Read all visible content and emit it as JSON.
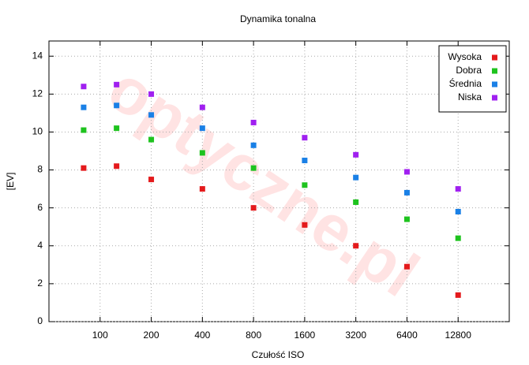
{
  "chart_data": {
    "type": "scatter",
    "title": "Dynamika tonalna",
    "x_label": "Czułość ISO",
    "y_label": "[EV]",
    "watermark": "optyczne.pl",
    "x": [
      80,
      125,
      200,
      400,
      800,
      1600,
      3200,
      6400,
      12800
    ],
    "series": [
      {
        "name": "Wysoka",
        "color": "#e41a1c",
        "values": [
          8.1,
          8.2,
          7.5,
          7.0,
          6.0,
          5.1,
          4.0,
          2.9,
          1.4
        ]
      },
      {
        "name": "Dobra",
        "color": "#1ec31e",
        "values": [
          10.1,
          10.2,
          9.6,
          8.9,
          8.1,
          7.2,
          6.3,
          5.4,
          4.4
        ]
      },
      {
        "name": "Średnia",
        "color": "#1a80e6",
        "values": [
          11.3,
          11.4,
          10.9,
          10.2,
          9.3,
          8.5,
          7.6,
          6.8,
          5.8
        ]
      },
      {
        "name": "Niska",
        "color": "#a020f0",
        "values": [
          12.4,
          12.5,
          12.0,
          11.3,
          10.5,
          9.7,
          8.8,
          7.9,
          7.0
        ]
      }
    ],
    "xscale": "log",
    "xlim": [
      50,
      25600
    ],
    "xticks": [
      100,
      200,
      400,
      800,
      1600,
      3200,
      6400,
      12800
    ],
    "ylim": [
      0,
      14.8
    ],
    "yticks": [
      0,
      2,
      4,
      6,
      8,
      10,
      12,
      14
    ],
    "grid": true,
    "legend": "top-right"
  }
}
